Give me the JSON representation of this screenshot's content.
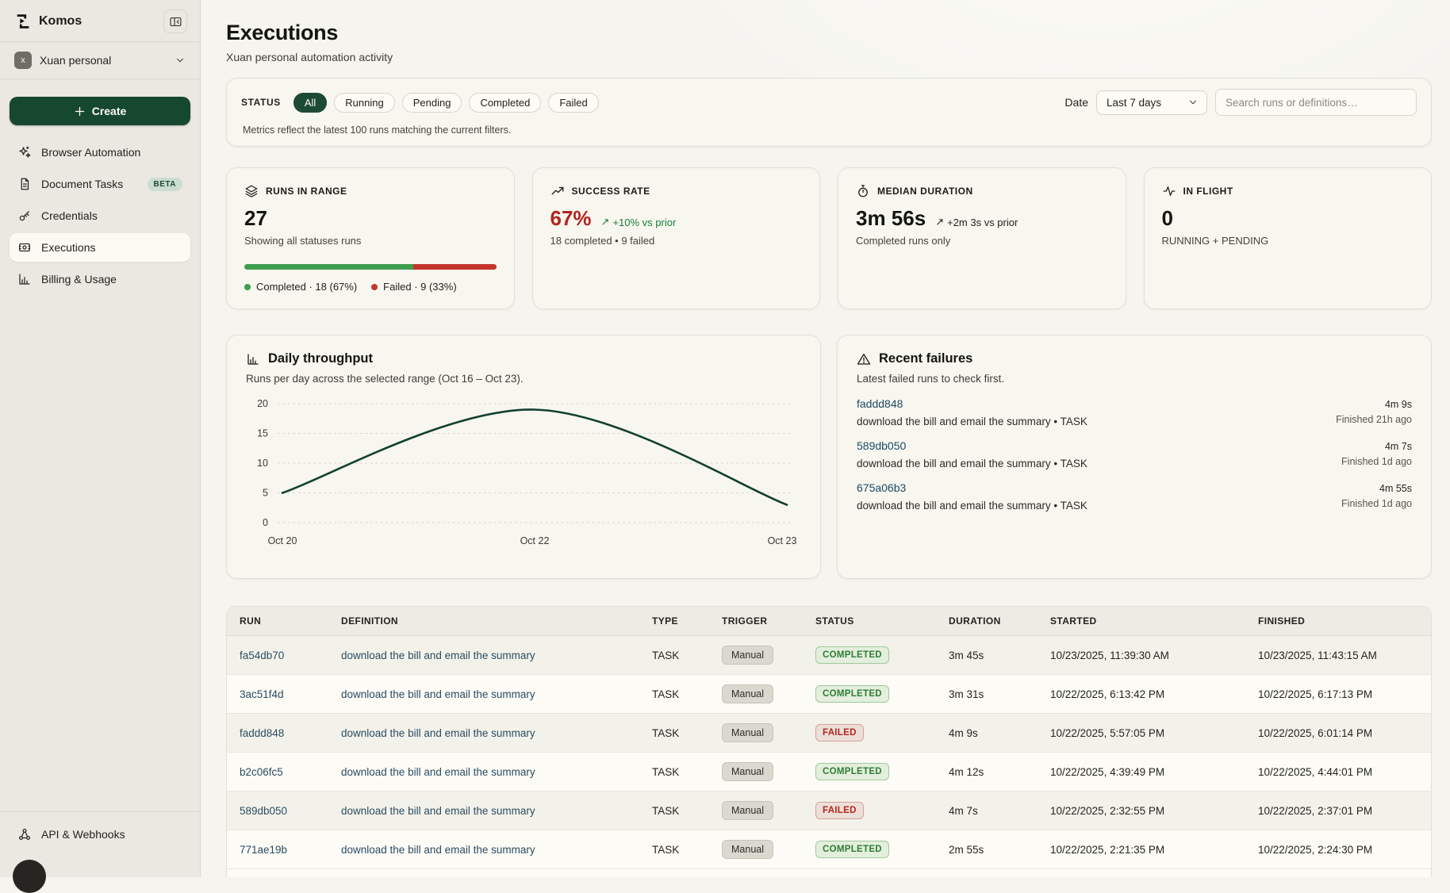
{
  "app": {
    "name": "Komos",
    "logo_icon": "komos-logo-icon",
    "collapse_icon": "panel-collapse-icon"
  },
  "sidebar": {
    "workspace": {
      "avatar_letter": "x",
      "name": "Xuan personal",
      "chevron_icon": "chevron-down-icon"
    },
    "create": {
      "label": "Create",
      "icon": "plus-icon"
    },
    "items": [
      {
        "label": "Browser Automation",
        "icon": "sparkles-icon",
        "state": "",
        "badge": ""
      },
      {
        "label": "Document Tasks",
        "icon": "document-icon",
        "state": "",
        "badge": "BETA"
      },
      {
        "label": "Credentials",
        "icon": "key-icon",
        "state": "",
        "badge": ""
      },
      {
        "label": "Executions",
        "icon": "executions-icon",
        "state": "active",
        "badge": ""
      },
      {
        "label": "Billing & Usage",
        "icon": "bar-chart-icon",
        "state": "",
        "badge": ""
      }
    ],
    "footer_item": {
      "label": "API & Webhooks",
      "icon": "webhook-icon"
    }
  },
  "header": {
    "title": "Executions",
    "subtitle": "Xuan personal automation activity"
  },
  "filters": {
    "status_label": "STATUS",
    "chips": [
      {
        "label": "All",
        "state": "active"
      },
      {
        "label": "Running",
        "state": ""
      },
      {
        "label": "Pending",
        "state": ""
      },
      {
        "label": "Completed",
        "state": ""
      },
      {
        "label": "Failed",
        "state": ""
      }
    ],
    "note": "Metrics reflect the latest 100 runs matching the current filters.",
    "date_label": "Date",
    "date_value": "Last 7 days",
    "date_chevron_icon": "chevron-down-icon",
    "search_placeholder": "Search runs or definitions…"
  },
  "metrics": {
    "runs_in_range": {
      "icon": "layers-icon",
      "label": "RUNS IN RANGE",
      "value": "27",
      "caption": "Showing all statuses runs",
      "completed_pct": 67,
      "failed_pct": 33,
      "legend_completed": "Completed · 18 (67%)",
      "legend_failed": "Failed · 9 (33%)"
    },
    "success_rate": {
      "icon": "trending-up-icon",
      "label": "SUCCESS RATE",
      "value": "67%",
      "trend_arrow": "↗",
      "trend": "+10% vs prior",
      "caption": "18 completed • 9 failed"
    },
    "median_duration": {
      "icon": "stopwatch-icon",
      "label": "MEDIAN DURATION",
      "value": "3m 56s",
      "trend_arrow": "↗",
      "trend": "+2m 3s vs prior",
      "caption": "Completed runs only"
    },
    "in_flight": {
      "icon": "activity-icon",
      "label": "IN FLIGHT",
      "value": "0",
      "caption": "RUNNING + PENDING"
    }
  },
  "throughput": {
    "icon": "bar-chart-icon",
    "title": "Daily throughput",
    "subtitle": "Runs per day across the selected range (Oct 16 – Oct 23)."
  },
  "chart_data": {
    "type": "line",
    "title": "Daily throughput",
    "x": [
      "Oct 20",
      "Oct 22",
      "Oct 23"
    ],
    "values": [
      5,
      19,
      3
    ],
    "ylim": [
      0,
      20
    ],
    "yticks": [
      0,
      5,
      10,
      15,
      20
    ],
    "grid": "dashed-horizontal",
    "line_color": "#12402f",
    "smooth": true
  },
  "failures": {
    "icon": "warning-icon",
    "title": "Recent failures",
    "subtitle": "Latest failed runs to check first.",
    "items": [
      {
        "id": "faddd848",
        "definition": "download the bill and email the summary • TASK",
        "duration": "4m 9s",
        "finished": "Finished 21h ago"
      },
      {
        "id": "589db050",
        "definition": "download the bill and email the summary • TASK",
        "duration": "4m 7s",
        "finished": "Finished 1d ago"
      },
      {
        "id": "675a06b3",
        "definition": "download the bill and email the summary • TASK",
        "duration": "4m 55s",
        "finished": "Finished 1d ago"
      }
    ]
  },
  "table": {
    "columns": [
      "RUN",
      "DEFINITION",
      "TYPE",
      "TRIGGER",
      "STATUS",
      "DURATION",
      "STARTED",
      "FINISHED"
    ],
    "rows": [
      {
        "id": "fa54db70",
        "definition": "download the bill and email the summary",
        "type": "TASK",
        "trigger": "Manual",
        "status": "COMPLETED",
        "status_class": "completed",
        "duration": "3m 45s",
        "started": "10/23/2025, 11:39:30 AM",
        "finished": "10/23/2025, 11:43:15 AM"
      },
      {
        "id": "3ac51f4d",
        "definition": "download the bill and email the summary",
        "type": "TASK",
        "trigger": "Manual",
        "status": "COMPLETED",
        "status_class": "completed",
        "duration": "3m 31s",
        "started": "10/22/2025, 6:13:42 PM",
        "finished": "10/22/2025, 6:17:13 PM"
      },
      {
        "id": "faddd848",
        "definition": "download the bill and email the summary",
        "type": "TASK",
        "trigger": "Manual",
        "status": "FAILED",
        "status_class": "failed",
        "duration": "4m 9s",
        "started": "10/22/2025, 5:57:05 PM",
        "finished": "10/22/2025, 6:01:14 PM"
      },
      {
        "id": "b2c06fc5",
        "definition": "download the bill and email the summary",
        "type": "TASK",
        "trigger": "Manual",
        "status": "COMPLETED",
        "status_class": "completed",
        "duration": "4m 12s",
        "started": "10/22/2025, 4:39:49 PM",
        "finished": "10/22/2025, 4:44:01 PM"
      },
      {
        "id": "589db050",
        "definition": "download the bill and email the summary",
        "type": "TASK",
        "trigger": "Manual",
        "status": "FAILED",
        "status_class": "failed",
        "duration": "4m 7s",
        "started": "10/22/2025, 2:32:55 PM",
        "finished": "10/22/2025, 2:37:01 PM"
      },
      {
        "id": "771ae19b",
        "definition": "download the bill and email the summary",
        "type": "TASK",
        "trigger": "Manual",
        "status": "COMPLETED",
        "status_class": "completed",
        "duration": "2m 55s",
        "started": "10/22/2025, 2:21:35 PM",
        "finished": "10/22/2025, 2:24:30 PM"
      }
    ]
  },
  "colors": {
    "accent_green_dark": "#16472f",
    "chip_active": "#1d4a34",
    "success_text": "#1a7e36",
    "error_text": "#b3261e",
    "bar_completed": "#3f9d4e",
    "bar_failed": "#c5352c",
    "chart_line": "#12402f",
    "link": "#2b4c61"
  }
}
